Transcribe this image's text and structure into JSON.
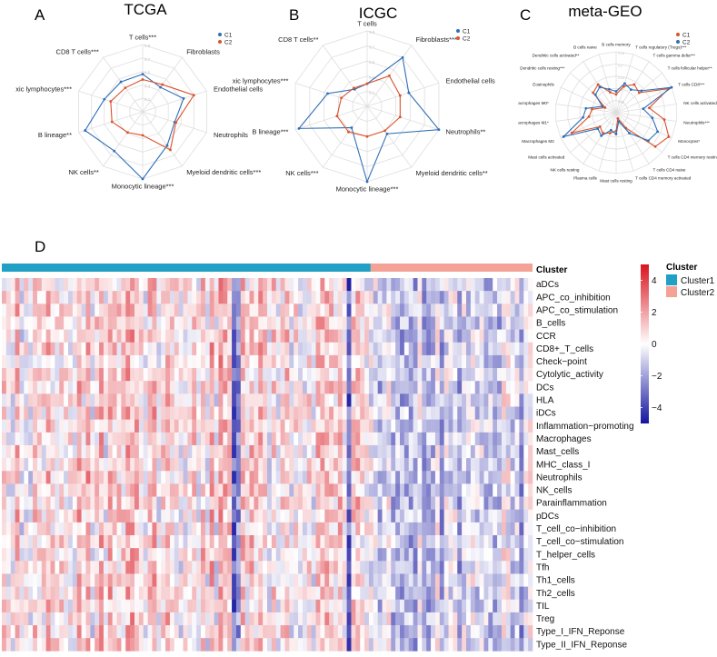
{
  "panels": {
    "A": "A",
    "B": "B",
    "C": "C",
    "D": "D"
  },
  "chart_data": [
    {
      "type": "radar",
      "panel": "A",
      "title": "TCGA",
      "axes": [
        "T cells***",
        "Fibroblasts",
        "Endothelial cells",
        "Neutrophils",
        "Myeloid dendritic cells***",
        "Monocytic lineage***",
        "NK cells**",
        "B lineage**",
        "xic lymphocytes***",
        "CD8 T cells***"
      ],
      "rings": [
        "0.1",
        "0.3",
        "0.5",
        "0.7",
        "0.9"
      ],
      "series": [
        {
          "name": "C1",
          "color": "#2f6fb6",
          "values": [
            0.56,
            0.45,
            0.64,
            0.5,
            0.62,
            1.0,
            0.72,
            0.9,
            0.6,
            0.55
          ]
        },
        {
          "name": "C2",
          "color": "#d9532e",
          "values": [
            0.48,
            0.5,
            0.8,
            0.52,
            0.7,
            0.35,
            0.38,
            0.48,
            0.5,
            0.44
          ]
        }
      ]
    },
    {
      "type": "radar",
      "panel": "B",
      "title": "ICGC",
      "axes": [
        "T cells",
        "Fibroblasts***",
        "Endothelial cells",
        "Neutrophils**",
        "Myeloid dendritic cells**",
        "Monocytic lineage***",
        "NK cells***",
        "B lineage***",
        "xic lymphocytes***",
        "CD8 T cells**"
      ],
      "rings": [
        "0.1",
        "0.3",
        "0.5",
        "0.7",
        "0.9"
      ],
      "series": [
        {
          "name": "C1",
          "color": "#2f6fb6",
          "values": [
            0.3,
            0.8,
            0.58,
            1.0,
            0.45,
            1.0,
            0.35,
            0.95,
            0.55,
            0.28
          ]
        },
        {
          "name": "C2",
          "color": "#d9532e",
          "values": [
            0.3,
            0.5,
            0.46,
            0.46,
            0.4,
            0.4,
            0.42,
            0.42,
            0.36,
            0.3
          ]
        }
      ]
    },
    {
      "type": "radar",
      "panel": "C",
      "title": "meta-GEO",
      "axes": [
        "B cells memory",
        "T cells regulatory (Tregs)***",
        "T cells gamma delta***",
        "T cells follicular helper**",
        "T cells CD8***",
        "NK cells activated",
        "Neutrophils***",
        "Monocytes*",
        "T cells CD4 memory resting***",
        "T cells CD4 naive",
        "T cells CD4 memory activated",
        "Mast cells resting",
        "Plasma cells",
        "NK cells resting",
        "Mast cells activated",
        "Macrophages M2",
        "acrophages M1*",
        "acrophages M0*",
        "Eosinophils",
        "Dendritic cells resting***",
        "Dendritic cells activated**",
        "B cells naive"
      ],
      "rings": [
        "0.05",
        "0.1",
        "0.15",
        "0.2",
        "0.25"
      ],
      "series": [
        {
          "name": "C1",
          "color": "#d9532e",
          "values": [
            0.3,
            0.45,
            0.55,
            0.5,
            0.95,
            0.55,
            0.8,
            0.95,
            0.85,
            0.3,
            0.1,
            0.3,
            0.35,
            0.4,
            0.35,
            0.8,
            0.45,
            0.4,
            0.2,
            0.5,
            0.55,
            0.35
          ]
        },
        {
          "name": "C2",
          "color": "#2f6fb6",
          "values": [
            0.35,
            0.5,
            0.45,
            0.55,
            1.0,
            0.45,
            0.6,
            0.75,
            0.7,
            0.4,
            0.15,
            0.35,
            0.3,
            0.45,
            0.4,
            0.95,
            0.55,
            0.5,
            0.25,
            0.45,
            0.5,
            0.4
          ]
        }
      ]
    },
    {
      "type": "heatmap",
      "panel": "D",
      "annotation_title": "Cluster",
      "legend_title": "Cluster",
      "clusters": [
        {
          "name": "Cluster1",
          "color": "#1fa0c4",
          "fraction": 0.695
        },
        {
          "name": "Cluster2",
          "color": "#f4a296",
          "fraction": 0.305
        }
      ],
      "rows": [
        "aDCs",
        "APC_co_inhibition",
        "APC_co_stimulation",
        "B_cells",
        "CCR",
        "CD8+_T_cells",
        "Check−point",
        "Cytolytic_activity",
        "DCs",
        "HLA",
        "iDCs",
        "Inflammation−promoting",
        "Macrophages",
        "Mast_cells",
        "MHC_class_I",
        "Neutrophils",
        "NK_cells",
        "Parainflammation",
        "pDCs",
        "T_cell_co−inhibition",
        "T_cell_co−stimulation",
        "T_helper_cells",
        "Tfh",
        "Th1_cells",
        "Th2_cells",
        "TIL",
        "Treg",
        "Type_I_IFN_Reponse",
        "Type_II_IFN_Reponse"
      ],
      "n_samples": 120,
      "color_scale": {
        "low": "#1414a0",
        "mid": "#ffffff",
        "high": "#d8141e",
        "min": -5,
        "max": 5
      },
      "colorbar_ticks": [
        "4",
        "2",
        "0",
        "−2",
        "−4"
      ]
    }
  ]
}
